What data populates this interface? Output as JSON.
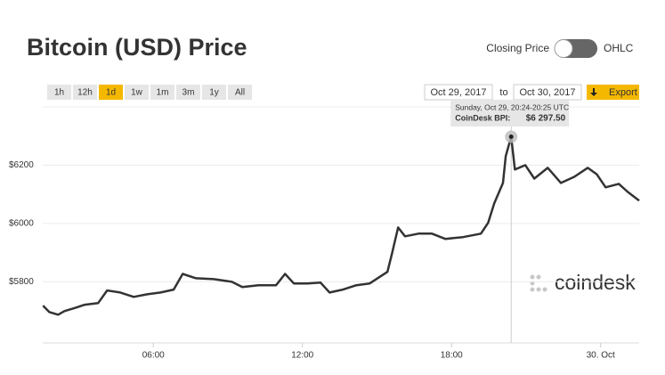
{
  "chart_data": {
    "type": "line",
    "title": "Bitcoin (USD) Price",
    "x": [
      1.56,
      1.81,
      2.17,
      2.42,
      2.88,
      3.24,
      3.78,
      4.14,
      4.67,
      5.21,
      5.75,
      6.29,
      6.82,
      7.18,
      7.72,
      8.43,
      9.15,
      9.58,
      10.23,
      10.94,
      11.3,
      11.66,
      12.2,
      12.73,
      13.09,
      13.63,
      14.17,
      14.7,
      15.42,
      15.6,
      15.85,
      16.13,
      16.67,
      17.21,
      17.75,
      18.46,
      19.18,
      19.47,
      19.72,
      20.07,
      20.18,
      20.4,
      20.55,
      20.97,
      21.33,
      21.87,
      22.4,
      22.94,
      23.48,
      23.84,
      24.2,
      24.73,
      25.09,
      25.55
    ],
    "series": [
      {
        "color": "#333333",
        "values": [
          5718,
          5696,
          5687,
          5699,
          5711,
          5721,
          5727,
          5770,
          5763,
          5748,
          5757,
          5763,
          5773,
          5827,
          5812,
          5809,
          5800,
          5782,
          5788,
          5788,
          5827,
          5794,
          5794,
          5797,
          5763,
          5773,
          5788,
          5794,
          5834,
          5895,
          5986,
          5956,
          5965,
          5965,
          5947,
          5953,
          5965,
          6002,
          6069,
          6139,
          6231,
          6297.5,
          6185,
          6200,
          6154,
          6191,
          6139,
          6160,
          6191,
          6169,
          6124,
          6136,
          6108,
          6078
        ]
      }
    ],
    "xlim": [
      1.55,
      25.55
    ],
    "xticks": [
      {
        "value": 6,
        "label": "06:00"
      },
      {
        "value": 12,
        "label": "12:00"
      },
      {
        "value": 18,
        "label": "18:00"
      },
      {
        "value": 24,
        "label": "30. Oct"
      }
    ],
    "ylim": [
      5590,
      6400
    ],
    "yticks": [
      {
        "value": 5800,
        "label": "$5800"
      },
      {
        "value": 6000,
        "label": "$6000"
      },
      {
        "value": 6200,
        "label": "$6200"
      }
    ],
    "grid": true,
    "tooltip": {
      "x": 20.4,
      "y": 6297.5,
      "date": "Sunday, Oct 29, 20:24-20:25 UTC",
      "label": "CoinDesk BPI:",
      "value_label": "$6 297.50"
    }
  },
  "controls": {
    "toggle_left": "Closing Price",
    "toggle_right": "OHLC",
    "ranges": [
      "1h",
      "12h",
      "1d",
      "1w",
      "1m",
      "3m",
      "1y",
      "All"
    ],
    "active_range": 2,
    "date_from": "Oct 29, 2017",
    "date_sep": "to",
    "date_to": "Oct 30, 2017",
    "export": "Export",
    "watermark": "coindesk"
  }
}
